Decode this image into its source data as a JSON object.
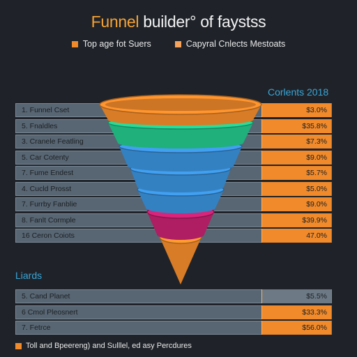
{
  "title": {
    "first_word": "Funnel",
    "rest": " builder° of faystss"
  },
  "legend": [
    {
      "label": "Top age fot Suers",
      "color": "#f08a2b"
    },
    {
      "label": "Capyral Cnlects Mestoats",
      "color": "#f5a35c"
    }
  ],
  "top_section_label": "Corlents 2018",
  "bottom_section_label": "Liards",
  "footnote": "Toll and Bpeereng) and Sulllel, ed asy Percdures",
  "chart_data": {
    "type": "table",
    "title": "Funnel builder° of faystss",
    "top_rows": [
      {
        "label": "1. Funnel Cset",
        "value": "$3.0%"
      },
      {
        "label": "5. Fnaldles",
        "value": "$35.8%"
      },
      {
        "label": "3. Cranele Featling",
        "value": "$7.3%"
      },
      {
        "label": "5. Car Cotenty",
        "value": "$9.0%"
      },
      {
        "label": "7. Fume Endest",
        "value": "$5.7%"
      },
      {
        "label": "4. Cucld Prosst",
        "value": "$5.0%"
      },
      {
        "label": "7. Furrby Fanblie",
        "value": "$9.0%"
      },
      {
        "label": "8. Fanlt Cormple",
        "value": "$39.9%"
      },
      {
        "label": "16 Ceron Coiots",
        "value": "47.0%"
      }
    ],
    "bottom_rows": [
      {
        "label": "5. Cand Planet",
        "value": "$5.5%",
        "highlight": false
      },
      {
        "label": "6 Cmol Pleosnert",
        "value": "$33.3%",
        "highlight": true
      },
      {
        "label": "7. Fetrce",
        "value": "$56.0%",
        "highlight": true
      }
    ],
    "funnel_layers": [
      {
        "color": "#f08a2b"
      },
      {
        "color": "#22c48a"
      },
      {
        "color": "#3a8fd8"
      },
      {
        "color": "#3a8fd8"
      },
      {
        "color": "#3a8fd8"
      },
      {
        "color": "#c2206e"
      },
      {
        "color": "#f08a2b"
      }
    ]
  }
}
